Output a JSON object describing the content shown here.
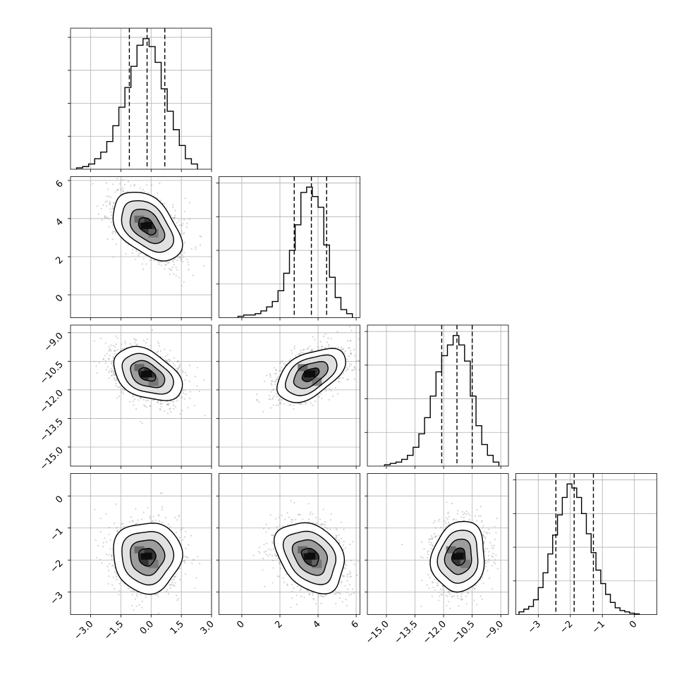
{
  "chart_data": {
    "type": "corner",
    "n_params": 4,
    "grid": true,
    "colors": {
      "line": "#000000",
      "points": "#9e9e9e",
      "grid": "#b0b0b0"
    },
    "params": [
      {
        "range": [
          -4.0,
          3.0
        ],
        "ticks": [
          -3.0,
          -1.5,
          0.0,
          1.5,
          3.0
        ],
        "tick_labels": [
          "−3.0",
          "−1.5",
          "0.0",
          "1.5",
          "3.0"
        ],
        "mean": -0.2,
        "sd": 0.85,
        "quantiles": [
          -1.08,
          -0.2,
          0.68
        ],
        "hist": {
          "edges": [
            -3.7,
            -3.4,
            -3.1,
            -2.8,
            -2.5,
            -2.2,
            -1.9,
            -1.6,
            -1.3,
            -1.0,
            -0.7,
            -0.4,
            -0.1,
            0.2,
            0.5,
            0.8,
            1.1,
            1.4,
            1.7,
            2.0,
            2.3
          ],
          "counts": [
            0.01,
            0.02,
            0.04,
            0.08,
            0.13,
            0.21,
            0.33,
            0.47,
            0.62,
            0.78,
            0.94,
            0.99,
            0.93,
            0.81,
            0.61,
            0.44,
            0.3,
            0.18,
            0.08,
            0.04
          ]
        }
      },
      {
        "range": [
          -1.2,
          6.2
        ],
        "ticks": [
          0,
          2,
          4,
          6
        ],
        "tick_labels": [
          "0",
          "2",
          "4",
          "6"
        ],
        "mean": 3.6,
        "sd": 0.9,
        "quantiles": [
          2.75,
          3.65,
          4.45
        ],
        "hist": {
          "edges": [
            -0.2,
            0.1,
            0.4,
            0.7,
            1.0,
            1.3,
            1.6,
            1.9,
            2.2,
            2.5,
            2.8,
            3.1,
            3.4,
            3.7,
            4.0,
            4.3,
            4.6,
            4.9,
            5.2,
            5.5,
            5.8
          ],
          "counts": [
            0.01,
            0.02,
            0.02,
            0.03,
            0.05,
            0.08,
            0.12,
            0.2,
            0.33,
            0.5,
            0.69,
            0.93,
            0.97,
            0.9,
            0.82,
            0.54,
            0.3,
            0.15,
            0.06,
            0.03
          ]
        }
      },
      {
        "range": [
          -16.0,
          -8.6
        ],
        "ticks": [
          -15.0,
          -13.5,
          -12.0,
          -10.5,
          -9.0
        ],
        "tick_labels": [
          "−15.0",
          "−13.5",
          "−12.0",
          "−10.5",
          "−9.0"
        ],
        "mean": -11.2,
        "sd": 0.7,
        "quantiles": [
          -12.1,
          -11.3,
          -10.5
        ],
        "hist": {
          "edges": [
            -15.1,
            -14.8,
            -14.5,
            -14.2,
            -13.9,
            -13.6,
            -13.3,
            -13.0,
            -12.7,
            -12.4,
            -12.1,
            -11.8,
            -11.5,
            -11.2,
            -10.9,
            -10.6,
            -10.3,
            -10.0,
            -9.7,
            -9.4,
            -9.1
          ],
          "counts": [
            0.01,
            0.02,
            0.03,
            0.05,
            0.08,
            0.14,
            0.24,
            0.36,
            0.52,
            0.7,
            0.82,
            0.9,
            0.97,
            0.9,
            0.78,
            0.52,
            0.3,
            0.16,
            0.08,
            0.03
          ]
        }
      },
      {
        "range": [
          -3.7,
          0.7
        ],
        "ticks": [
          -3,
          -2,
          -1,
          0
        ],
        "tick_labels": [
          "−3",
          "−2",
          "−1",
          "0"
        ],
        "mean": -1.9,
        "sd": 0.55,
        "quantiles": [
          -2.45,
          -1.88,
          -1.28
        ],
        "hist": {
          "edges": [
            -3.6,
            -3.45,
            -3.3,
            -3.15,
            -3.0,
            -2.85,
            -2.7,
            -2.55,
            -2.4,
            -2.25,
            -2.1,
            -1.95,
            -1.8,
            -1.65,
            -1.5,
            -1.35,
            -1.2,
            -1.05,
            -0.9,
            -0.75,
            -0.6,
            -0.45,
            -0.3,
            -0.15,
            0.0,
            0.15
          ],
          "counts": [
            0.02,
            0.04,
            0.06,
            0.11,
            0.2,
            0.31,
            0.45,
            0.59,
            0.74,
            0.87,
            0.97,
            0.94,
            0.87,
            0.75,
            0.6,
            0.46,
            0.33,
            0.23,
            0.15,
            0.09,
            0.05,
            0.03,
            0.02,
            0.01,
            0.005
          ]
        }
      }
    ],
    "pairs": [
      {
        "x": 0,
        "y": 1,
        "mean": [
          -0.2,
          3.6
        ],
        "sd": [
          0.85,
          0.9
        ],
        "rho": -0.45
      },
      {
        "x": 0,
        "y": 2,
        "mean": [
          -0.2,
          -11.2
        ],
        "sd": [
          0.85,
          0.7
        ],
        "rho": -0.4
      },
      {
        "x": 1,
        "y": 2,
        "mean": [
          3.6,
          -11.2
        ],
        "sd": [
          0.9,
          0.7
        ],
        "rho": 0.5
      },
      {
        "x": 0,
        "y": 3,
        "mean": [
          -0.2,
          -1.9
        ],
        "sd": [
          0.85,
          0.55
        ],
        "rho": 0.0
      },
      {
        "x": 1,
        "y": 3,
        "mean": [
          3.6,
          -1.9
        ],
        "sd": [
          0.9,
          0.55
        ],
        "rho": -0.3
      },
      {
        "x": 2,
        "y": 3,
        "mean": [
          -11.2,
          -1.9
        ],
        "sd": [
          0.7,
          0.55
        ],
        "rho": 0.1
      }
    ],
    "contour_levels_sigma": [
      0.5,
      1.0,
      1.5,
      2.0
    ]
  }
}
